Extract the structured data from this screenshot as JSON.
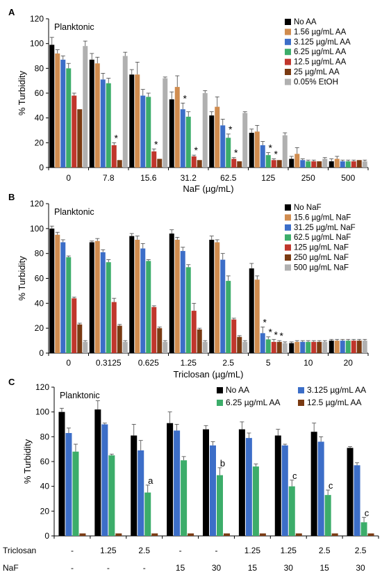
{
  "chart_data": [
    {
      "panel_label": "A",
      "type": "bar",
      "annotation": "Planktonic",
      "xlabel": "NaF (µg/mL)",
      "ylabel": "% Turbidity",
      "ylim": [
        0,
        120
      ],
      "yticks": [
        0,
        20,
        40,
        60,
        80,
        100,
        120
      ],
      "grid": false,
      "legend_position": "top-right",
      "categories": [
        "0",
        "7.8",
        "15.6",
        "31.2",
        "62.5",
        "125",
        "250",
        "500"
      ],
      "series": [
        {
          "name": "No AA",
          "color": "#000000",
          "values": [
            99,
            87,
            75,
            55,
            42,
            28,
            7,
            5
          ],
          "errors": [
            6,
            5,
            4,
            6,
            3,
            3,
            2,
            2
          ]
        },
        {
          "name": "1.56 µg/mL AA",
          "color": "#d08c4f",
          "values": [
            92,
            84,
            75,
            65,
            49,
            29,
            11,
            7
          ],
          "errors": [
            3,
            5,
            10,
            9,
            8,
            5,
            5,
            2
          ]
        },
        {
          "name": "3.125 µg/mL AA",
          "color": "#3c6ec8",
          "values": [
            87,
            71,
            58,
            47,
            34,
            18,
            6,
            5
          ],
          "errors": [
            3,
            5,
            5,
            5,
            5,
            3,
            1,
            1
          ]
        },
        {
          "name": "6.25 µg/mL AA",
          "color": "#3cad6a",
          "values": [
            80,
            68,
            57,
            41,
            24,
            10,
            5,
            5
          ],
          "errors": [
            4,
            4,
            3,
            4,
            3,
            2,
            1,
            1
          ]
        },
        {
          "name": "12.5 µg/mL AA",
          "color": "#c0362c",
          "values": [
            58,
            18,
            13,
            9,
            7,
            6,
            5,
            5
          ],
          "errors": [
            2,
            2,
            2,
            1,
            1,
            1,
            1,
            1
          ]
        },
        {
          "name": "25 µg/mL AA",
          "color": "#7a3a12",
          "values": [
            47,
            6,
            7,
            6,
            5,
            6,
            5,
            6
          ],
          "errors": [
            0,
            0,
            0,
            0,
            0,
            0,
            0,
            0
          ]
        },
        {
          "name": "0.05% EtOH",
          "color": "#b0b0b0",
          "values": [
            98,
            90,
            72,
            60,
            44,
            26,
            7,
            5
          ],
          "errors": [
            4,
            3,
            1,
            2,
            1,
            2,
            1,
            1
          ]
        }
      ],
      "bar_labels": [
        {
          "category": 1,
          "series": 4,
          "text": "*"
        },
        {
          "category": 2,
          "series": 4,
          "text": "*"
        },
        {
          "category": 3,
          "series": 2,
          "text": "*"
        },
        {
          "category": 3,
          "series": 4,
          "text": "*"
        },
        {
          "category": 4,
          "series": 3,
          "text": "*"
        },
        {
          "category": 4,
          "series": 4,
          "text": "*"
        },
        {
          "category": 5,
          "series": 3,
          "text": "*"
        },
        {
          "category": 5,
          "series": 4,
          "text": "*"
        }
      ]
    },
    {
      "panel_label": "B",
      "type": "bar",
      "annotation": "Planktonic",
      "xlabel": "Triclosan (µg/mL)",
      "ylabel": "% Turbidity",
      "ylim": [
        0,
        120
      ],
      "yticks": [
        0,
        20,
        40,
        60,
        80,
        100,
        120
      ],
      "grid": false,
      "legend_position": "top-right",
      "categories": [
        "0",
        "0.3125",
        "0.625",
        "1.25",
        "2.5",
        "5",
        "10",
        "20"
      ],
      "series": [
        {
          "name": "No NaF",
          "color": "#000000",
          "values": [
            100,
            89,
            94,
            96,
            91,
            68,
            8,
            10
          ],
          "errors": [
            2,
            1,
            2,
            3,
            3,
            4,
            1,
            1
          ]
        },
        {
          "name": "15.6 µg/mL NaF",
          "color": "#d08c4f",
          "values": [
            95,
            90,
            91,
            91,
            89,
            59,
            9,
            10
          ],
          "errors": [
            2,
            2,
            3,
            2,
            2,
            3,
            1,
            1
          ]
        },
        {
          "name": "31.25 µg/mL NaF",
          "color": "#3c6ec8",
          "values": [
            89,
            81,
            84,
            82,
            75,
            16,
            9,
            10
          ],
          "errors": [
            2,
            2,
            4,
            3,
            5,
            5,
            1,
            1
          ]
        },
        {
          "name": "62.5 µg/mL NaF",
          "color": "#3cad6a",
          "values": [
            77,
            73,
            74,
            69,
            58,
            11,
            9,
            10
          ],
          "errors": [
            1,
            2,
            1,
            2,
            4,
            2,
            1,
            1
          ]
        },
        {
          "name": "125 µg/mL NaF",
          "color": "#c0362c",
          "values": [
            44,
            41,
            37,
            34,
            27,
            9,
            9,
            10
          ],
          "errors": [
            1,
            3,
            1,
            6,
            1,
            2,
            1,
            1
          ]
        },
        {
          "name": "250 µg/mL NaF",
          "color": "#7a3a12",
          "values": [
            23,
            22,
            20,
            19,
            13,
            9,
            9,
            10
          ],
          "errors": [
            1,
            1,
            1,
            1,
            1,
            1,
            1,
            1
          ]
        },
        {
          "name": "500 µg/mL NaF",
          "color": "#b0b0b0",
          "values": [
            9,
            9,
            9,
            9,
            9,
            8,
            9,
            10
          ],
          "errors": [
            1,
            1,
            1,
            1,
            1,
            1,
            1,
            1
          ]
        }
      ],
      "bar_labels": [
        {
          "category": 5,
          "series": 2,
          "text": "*"
        },
        {
          "category": 5,
          "series": 3,
          "text": "*"
        },
        {
          "category": 5,
          "series": 4,
          "text": "*"
        },
        {
          "category": 5,
          "series": 5,
          "text": "*"
        }
      ]
    },
    {
      "panel_label": "C",
      "type": "bar",
      "annotation": "Planktonic",
      "xlabel": "",
      "ylabel": "% Turbidity",
      "ylim": [
        0,
        120
      ],
      "yticks": [
        0,
        20,
        40,
        60,
        80,
        100,
        120
      ],
      "grid": false,
      "legend_position": "top",
      "row_labels": [
        "Triclosan",
        "NaF"
      ],
      "categories": [
        {
          "triclosan": "-",
          "naf": "-"
        },
        {
          "triclosan": "1.25",
          "naf": "-"
        },
        {
          "triclosan": "2.5",
          "naf": "-"
        },
        {
          "triclosan": "-",
          "naf": "15"
        },
        {
          "triclosan": "-",
          "naf": "30"
        },
        {
          "triclosan": "1.25",
          "naf": "15"
        },
        {
          "triclosan": "1.25",
          "naf": "30"
        },
        {
          "triclosan": "2.5",
          "naf": "15"
        },
        {
          "triclosan": "2.5",
          "naf": "30"
        }
      ],
      "series": [
        {
          "name": "No AA",
          "color": "#000000",
          "values": [
            100,
            102,
            81,
            91,
            86,
            86,
            81,
            84,
            71
          ],
          "errors": [
            3,
            7,
            9,
            9,
            3,
            6,
            5,
            7,
            1
          ]
        },
        {
          "name": "3.125 µg/mL AA",
          "color": "#3c6ec8",
          "values": [
            83,
            90,
            69,
            85,
            73,
            79,
            73,
            76,
            57
          ],
          "errors": [
            4,
            1,
            8,
            5,
            3,
            4,
            1,
            4,
            2
          ]
        },
        {
          "name": "6.25 µg/mL AA",
          "color": "#3cad6a",
          "values": [
            68,
            65,
            35,
            61,
            49,
            56,
            40,
            33,
            11
          ],
          "errors": [
            6,
            1,
            6,
            3,
            6,
            2,
            5,
            4,
            4
          ]
        },
        {
          "name": "12.5 µg/mL AA",
          "color": "#7a3a12",
          "values": [
            2,
            2,
            2,
            2,
            2,
            2,
            2,
            2,
            2
          ],
          "errors": [
            0,
            0,
            0,
            0,
            0,
            0,
            0,
            0,
            0
          ]
        }
      ],
      "bar_labels": [
        {
          "category": 2,
          "series": 2,
          "text": "a"
        },
        {
          "category": 4,
          "series": 2,
          "text": "b"
        },
        {
          "category": 6,
          "series": 2,
          "text": "c"
        },
        {
          "category": 7,
          "series": 2,
          "text": "c"
        },
        {
          "category": 8,
          "series": 2,
          "text": "c"
        }
      ]
    }
  ]
}
